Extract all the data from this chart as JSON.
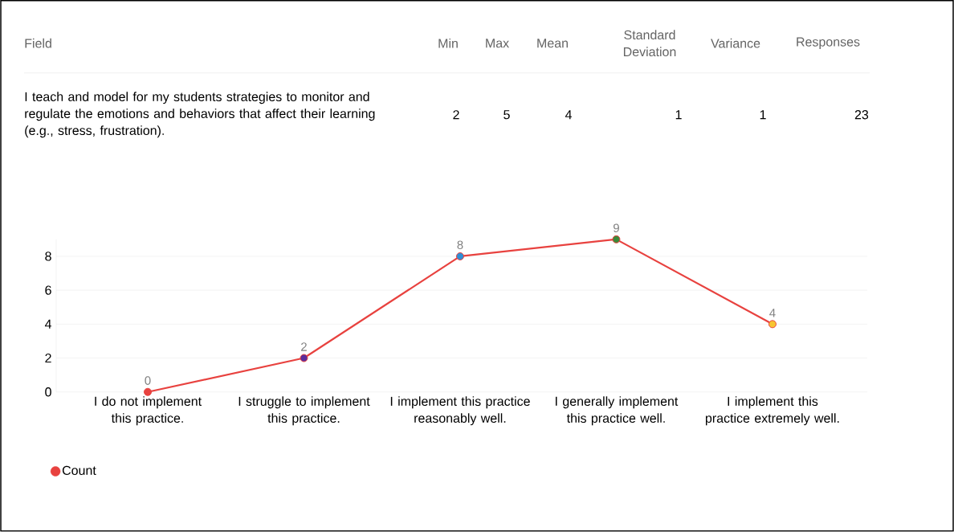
{
  "chart_data": {
    "type": "line",
    "annotations": [
      "Field",
      "Min",
      "Max",
      "Mean",
      "Standard Deviation",
      "Variance",
      "Responses",
      "I teach and model for my students strategies to monitor and regulate the emotions and behaviors that affect their learning (e.g., stress, frustration).",
      "2",
      "5",
      "4",
      "1",
      "1",
      "23"
    ],
    "categories": [
      "I do not implement this practice.",
      "I struggle to implement this practice.",
      "I implement this practice reasonably well.",
      "I generally implement this practice well.",
      "I implement this practice extremely well."
    ],
    "series": [
      {
        "name": "Count",
        "color": "#e8423f",
        "colors": [
          "#e8423f",
          "#5b2d9c",
          "#2f8fd6",
          "#3a8a3a",
          "#f7c531"
        ],
        "values": [
          0,
          2,
          8,
          9,
          4
        ]
      }
    ],
    "ylim": [
      0,
      9
    ],
    "yticks": [
      0,
      2,
      4,
      6,
      8
    ],
    "grid": "y",
    "legend": "bottom left",
    "marker": "circle",
    "line_style": "solid",
    "data_labels": true
  }
}
